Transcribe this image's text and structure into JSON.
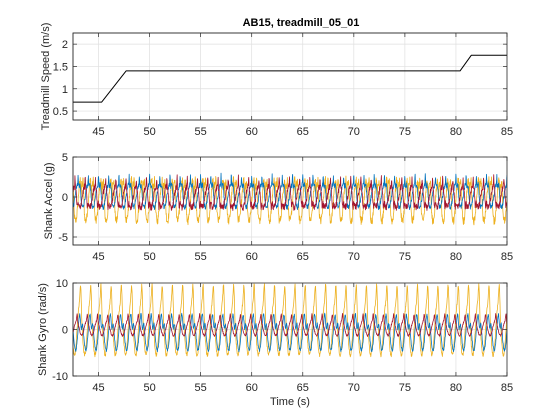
{
  "chart_data": [
    {
      "type": "line",
      "title": "AB15, treadmill_05_01",
      "xlabel": "",
      "ylabel": "Treadmill Speed (m/s)",
      "xlim": [
        42.5,
        85
      ],
      "ylim": [
        0.3,
        2.25
      ],
      "xticks": [
        45,
        50,
        55,
        60,
        65,
        70,
        75,
        80,
        85
      ],
      "yticks": [
        0.5,
        1,
        1.5,
        2
      ],
      "ytick_labels": [
        "0.5",
        "1",
        "1.5",
        "2"
      ],
      "grid": true,
      "series": [
        {
          "color": "#000000",
          "x": [
            42.5,
            45.3,
            47.7,
            80.4,
            81.5,
            85
          ],
          "y": [
            0.7,
            0.7,
            1.4,
            1.4,
            1.75,
            1.75
          ]
        }
      ]
    },
    {
      "type": "line",
      "title": "",
      "xlabel": "",
      "ylabel": "Shank Accel (g)",
      "xlim": [
        42.5,
        85
      ],
      "ylim": [
        -6,
        5
      ],
      "xticks": [
        45,
        50,
        55,
        60,
        65,
        70,
        75,
        80,
        85
      ],
      "yticks": [
        -5,
        0,
        5
      ],
      "ytick_labels": [
        "-5",
        "0",
        "5"
      ],
      "grid": true,
      "series": [
        {
          "color": "#EDB120",
          "signal": {
            "period": 1.0,
            "amp": 2.6,
            "phase": 0.0,
            "offset": -0.4,
            "pulses": [
              [
                0.5,
                1.0,
                7
              ],
              [
                0.3,
                -1.0,
                15
              ]
            ],
            "noise": 0.5
          }
        },
        {
          "color": "#0072BD",
          "signal": {
            "period": 1.0,
            "amp": 1.4,
            "phase": 0.3,
            "offset": 0.1,
            "pulses": [
              [
                0.5,
                1.0,
                5
              ],
              [
                0.3,
                1.0,
                18
              ]
            ],
            "noise": 0.3
          }
        },
        {
          "color": "#A2142F",
          "signal": {
            "period": 1.0,
            "amp": 1.3,
            "phase": 0.6,
            "offset": 0.0,
            "pulses": [
              [
                0.5,
                -1.0,
                8
              ],
              [
                0.3,
                1.0,
                16
              ]
            ],
            "noise": 0.4
          }
        }
      ]
    },
    {
      "type": "line",
      "title": "",
      "xlabel": "Time (s)",
      "ylabel": "Shank Gyro (rad/s)",
      "xlim": [
        42.5,
        85
      ],
      "ylim": [
        -10,
        10
      ],
      "xticks": [
        45,
        50,
        55,
        60,
        65,
        70,
        75,
        80,
        85
      ],
      "yticks": [
        -10,
        0,
        10
      ],
      "ytick_labels": [
        "-10",
        "0",
        "10"
      ],
      "grid": true,
      "series": [
        {
          "color": "#EDB120",
          "signal": {
            "period": 1.0,
            "amp": 5.5,
            "phase": 0.1,
            "offset": 0.0,
            "pulses": [
              [
                0.35,
                1.0,
                6
              ]
            ],
            "noise": 0.4
          }
        },
        {
          "color": "#0072BD",
          "signal": {
            "period": 1.0,
            "amp": 4.5,
            "phase": 0.0,
            "offset": 0.0,
            "pulses": [
              [
                0.3,
                -1.0,
                5
              ]
            ],
            "noise": 0.3
          }
        },
        {
          "color": "#A2142F",
          "signal": {
            "period": 1.0,
            "amp": 1.6,
            "phase": 0.4,
            "offset": 0.3,
            "pulses": [
              [
                0.3,
                1.0,
                9
              ]
            ],
            "noise": 0.2
          }
        }
      ]
    }
  ]
}
